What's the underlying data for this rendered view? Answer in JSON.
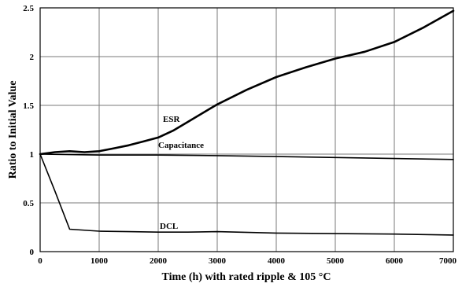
{
  "chart_data": {
    "type": "line",
    "xlabel": "Time (h) with rated ripple & 105 °C",
    "ylabel": "Ratio to Initial Value",
    "xlim": [
      0,
      7000
    ],
    "ylim": [
      0,
      2.5
    ],
    "x_ticks": [
      0,
      1000,
      2000,
      3000,
      4000,
      5000,
      6000,
      7000
    ],
    "y_ticks": [
      0,
      0.5,
      1,
      1.5,
      2,
      2.5
    ],
    "x_tick_labels": [
      "0",
      "1000",
      "2000",
      "3000",
      "4000",
      "5000",
      "6000",
      "7000"
    ],
    "y_tick_labels": [
      "0",
      "0.5",
      "1",
      "1.5",
      "2",
      "2.5"
    ],
    "grid": true,
    "series": [
      {
        "name": "ESR",
        "x": [
          0,
          250,
          500,
          750,
          1000,
          1250,
          1500,
          1750,
          2000,
          2250,
          2500,
          2750,
          3000,
          3500,
          4000,
          4500,
          5000,
          5500,
          6000,
          6500,
          7000
        ],
        "y": [
          1.0,
          1.02,
          1.03,
          1.02,
          1.03,
          1.06,
          1.09,
          1.13,
          1.17,
          1.24,
          1.33,
          1.42,
          1.51,
          1.66,
          1.79,
          1.89,
          1.98,
          2.05,
          2.15,
          2.3,
          2.47
        ]
      },
      {
        "name": "Capacitance",
        "x": [
          0,
          500,
          1000,
          1500,
          2000,
          3000,
          4000,
          5000,
          6000,
          7000
        ],
        "y": [
          1.0,
          0.995,
          0.99,
          0.99,
          0.99,
          0.985,
          0.975,
          0.965,
          0.955,
          0.945
        ]
      },
      {
        "name": "DCL",
        "x": [
          0,
          250,
          500,
          1000,
          1500,
          2000,
          2500,
          3000,
          4000,
          5000,
          6000,
          7000
        ],
        "y": [
          1.0,
          0.62,
          0.23,
          0.21,
          0.205,
          0.2,
          0.2,
          0.205,
          0.19,
          0.185,
          0.18,
          0.17
        ]
      }
    ]
  }
}
